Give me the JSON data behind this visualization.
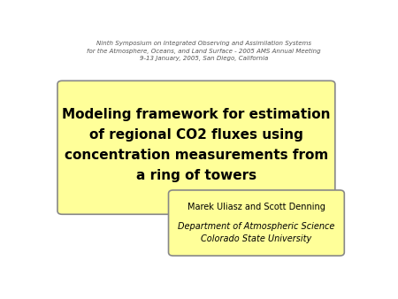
{
  "header_line1": "Ninth Symposium on Integrated Observing and Assimilation Systems",
  "header_line2": "for the Atmosphere, Oceans, and Land Surface - 2005 AMS Annual Meeting",
  "header_line3": "9-13 January, 2005, San Diego, California",
  "main_title_lines": [
    "Modeling framework for estimation",
    "of regional CO2 fluxes using",
    "concentration measurements from",
    "a ring of towers"
  ],
  "author_line1": "Marek Uliasz and Scott Denning",
  "author_line2": "Department of Atmospheric Science",
  "author_line3": "Colorado State University",
  "bg_color": "#ffffff",
  "main_box_fill": "#ffff99",
  "main_box_edge": "#888888",
  "author_box_fill": "#ffff99",
  "author_box_edge": "#888888",
  "main_title_color": "#000000",
  "author_text_color": "#000000",
  "header_text_color": "#555555"
}
